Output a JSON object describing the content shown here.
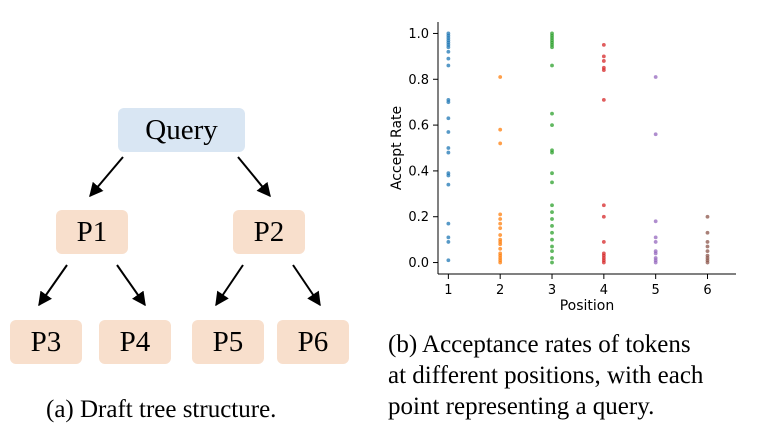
{
  "tree": {
    "root": "Query",
    "level1": [
      "P1",
      "P2"
    ],
    "level2": [
      "P3",
      "P4",
      "P5",
      "P6"
    ],
    "caption": "(a) Draft tree structure."
  },
  "caption_b": {
    "line1": "(b) Acceptance rates of tokens",
    "line2": "at different positions, with each",
    "line3": "point representing a query."
  },
  "chart_data": {
    "type": "scatter",
    "xlabel": "Position",
    "ylabel": "Accept Rate",
    "xlim": [
      0.8,
      6.55
    ],
    "ylim": [
      -0.05,
      1.05
    ],
    "xticks": [
      1,
      2,
      3,
      4,
      5,
      6
    ],
    "yticks": [
      0.0,
      0.2,
      0.4,
      0.6,
      0.8,
      1.0
    ],
    "ytick_labels": [
      "0.0",
      "0.2",
      "0.4",
      "0.6",
      "0.8",
      "1.0"
    ],
    "grid": false,
    "series": [
      {
        "x": 1,
        "color": "#1f77b4",
        "values": [
          1.0,
          0.99,
          0.98,
          0.97,
          0.96,
          0.95,
          0.94,
          0.92,
          0.89,
          0.86,
          0.71,
          0.7,
          0.63,
          0.57,
          0.5,
          0.48,
          0.39,
          0.38,
          0.34,
          0.17,
          0.11,
          0.09,
          0.01
        ]
      },
      {
        "x": 2,
        "color": "#ff7f0e",
        "values": [
          0.81,
          0.58,
          0.52,
          0.21,
          0.19,
          0.17,
          0.15,
          0.12,
          0.1,
          0.09,
          0.08,
          0.06,
          0.04,
          0.03,
          0.02,
          0.01,
          0.0
        ]
      },
      {
        "x": 3,
        "color": "#2ca02c",
        "values": [
          1.0,
          0.99,
          0.98,
          0.97,
          0.96,
          0.95,
          0.94,
          0.86,
          0.65,
          0.6,
          0.49,
          0.48,
          0.39,
          0.35,
          0.25,
          0.22,
          0.19,
          0.16,
          0.13,
          0.1,
          0.07,
          0.05,
          0.02,
          0.0
        ]
      },
      {
        "x": 4,
        "color": "#d62728",
        "values": [
          0.95,
          0.9,
          0.88,
          0.85,
          0.84,
          0.71,
          0.25,
          0.2,
          0.09,
          0.04,
          0.03,
          0.02,
          0.01,
          0.0
        ]
      },
      {
        "x": 5,
        "color": "#9467bd",
        "values": [
          0.81,
          0.56,
          0.18,
          0.11,
          0.09,
          0.05,
          0.04,
          0.02,
          0.01,
          0.0
        ]
      },
      {
        "x": 6,
        "color": "#8c564b",
        "values": [
          0.2,
          0.13,
          0.09,
          0.07,
          0.05,
          0.03,
          0.02,
          0.01,
          0.0
        ]
      }
    ]
  }
}
